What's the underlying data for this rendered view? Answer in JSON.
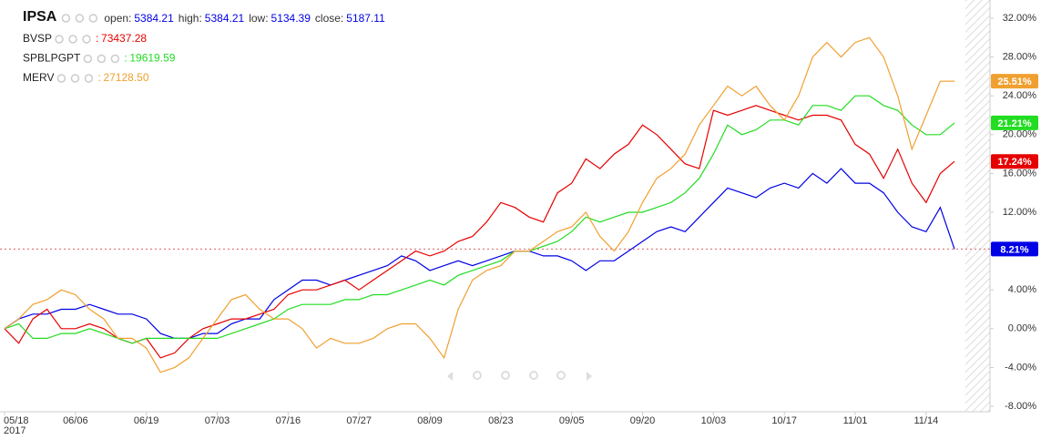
{
  "chart_data": {
    "type": "line",
    "title": "IPSA",
    "ohlc": [
      {
        "label": "open:",
        "value": 5384.21
      },
      {
        "label": "high:",
        "value": 5384.21
      },
      {
        "label": "low:",
        "value": 5134.39
      },
      {
        "label": "close:",
        "value": 5187.11
      }
    ],
    "year_label": "2017",
    "categories": [
      "05/18",
      null,
      null,
      null,
      null,
      "06/06",
      null,
      null,
      null,
      null,
      "06/19",
      null,
      null,
      null,
      null,
      "07/03",
      null,
      null,
      null,
      null,
      "07/16",
      null,
      null,
      null,
      null,
      "07/27",
      null,
      null,
      null,
      null,
      "08/09",
      null,
      null,
      null,
      null,
      "08/23",
      null,
      null,
      null,
      null,
      "09/05",
      null,
      null,
      null,
      null,
      "09/20",
      null,
      null,
      null,
      null,
      "10/03",
      null,
      null,
      null,
      null,
      "10/17",
      null,
      null,
      null,
      null,
      "11/01",
      null,
      null,
      null,
      null,
      "11/14",
      null,
      null
    ],
    "ylim": [
      -8,
      32
    ],
    "yticks": [
      {
        "value": -8,
        "label": "-8.00%"
      },
      {
        "value": -4,
        "label": "-4.00%"
      },
      {
        "value": 0,
        "label": "0.00%"
      },
      {
        "value": 4,
        "label": "4.00%"
      },
      {
        "value": 8,
        "label": "8.00%"
      },
      {
        "value": 12,
        "label": "12.00%"
      },
      {
        "value": 16,
        "label": "16.00%"
      },
      {
        "value": 20,
        "label": "20.00%"
      },
      {
        "value": 24,
        "label": "24.00%"
      },
      {
        "value": 28,
        "label": "28.00%"
      },
      {
        "value": 32,
        "label": "32.00%"
      }
    ],
    "series": [
      {
        "name": "IPSA",
        "color": "#0000e6",
        "last_label": "8.21%",
        "values": [
          0,
          1,
          1.5,
          1.5,
          2,
          2,
          2.5,
          2,
          1.5,
          1.5,
          1,
          -0.5,
          -1,
          -1,
          -0.5,
          -0.5,
          0.5,
          1,
          1,
          3,
          4,
          5,
          5,
          4.5,
          5,
          5.5,
          6,
          6.5,
          7.5,
          7,
          6,
          6.5,
          7,
          6.5,
          7,
          7.5,
          8,
          8,
          7.5,
          7.5,
          7,
          6,
          7,
          7,
          8,
          9,
          10,
          10.5,
          10,
          11.5,
          13,
          14.5,
          14,
          13.5,
          14.5,
          15,
          14.5,
          16,
          15,
          16.5,
          15,
          15,
          14,
          12,
          10.5,
          10,
          12.5,
          8.21
        ]
      },
      {
        "name": "BVSP",
        "color": "#e60000",
        "legend_value": 73437.28,
        "last_label": "17.24%",
        "values": [
          0,
          -1.5,
          1,
          2,
          0,
          0,
          0.5,
          0,
          -1,
          -1.5,
          -1,
          -3,
          -2.5,
          -1,
          0,
          0.5,
          1,
          1,
          1.5,
          2,
          3.5,
          4,
          4,
          4.5,
          5,
          4,
          5,
          6,
          7,
          8,
          7.5,
          8,
          9,
          9.5,
          11,
          13,
          12.5,
          11.5,
          11,
          14,
          15,
          17.5,
          16.5,
          18,
          19,
          21,
          20,
          18.5,
          17,
          16.5,
          22.5,
          22,
          22.5,
          23,
          22.5,
          22,
          21.5,
          22,
          22,
          21.5,
          19,
          18,
          15.5,
          18.5,
          15,
          13,
          16,
          17.24
        ]
      },
      {
        "name": "SPBLPGPT",
        "color": "#22dd22",
        "legend_value": 19619.59,
        "last_label": "21.21%",
        "values": [
          0,
          0.5,
          -1,
          -1,
          -0.5,
          -0.5,
          0,
          -0.5,
          -1,
          -1.5,
          -1,
          -1,
          -1,
          -1,
          -1,
          -1,
          -0.5,
          0,
          0.5,
          1,
          2,
          2.5,
          2.5,
          2.5,
          3,
          3,
          3.5,
          3.5,
          4,
          4.5,
          5,
          4.5,
          5.5,
          6,
          6.5,
          7,
          8,
          8,
          8.5,
          9,
          10,
          11.5,
          11,
          11.5,
          12,
          12,
          12.5,
          13,
          14,
          15.5,
          18,
          21,
          20,
          20.5,
          21.5,
          21.5,
          21,
          23,
          23,
          22.5,
          24,
          24,
          23,
          22.5,
          21,
          20,
          20,
          21.21
        ]
      },
      {
        "name": "MERV",
        "color": "#f0a030",
        "legend_value": {
          "value": 27128.5,
          "label": "27128.50"
        },
        "last_label": "25.51%",
        "values": [
          0,
          1,
          2.5,
          3,
          4,
          3.5,
          2,
          1,
          -1,
          -1,
          -2,
          -4.5,
          -4,
          -3,
          -1,
          1,
          3,
          3.5,
          2,
          1,
          1,
          0,
          -2,
          -1,
          -1.5,
          -1.5,
          -1,
          0,
          0.5,
          0.5,
          -1,
          -3,
          2,
          5,
          6,
          6.5,
          8,
          8,
          9,
          10,
          10.5,
          12,
          9.5,
          8,
          10,
          13,
          15.5,
          16.5,
          18,
          21,
          23,
          25,
          24,
          25,
          23,
          21.5,
          24,
          28,
          29.5,
          28,
          29.5,
          30,
          28,
          24,
          18.5,
          22,
          25.5,
          25.51
        ]
      }
    ]
  }
}
